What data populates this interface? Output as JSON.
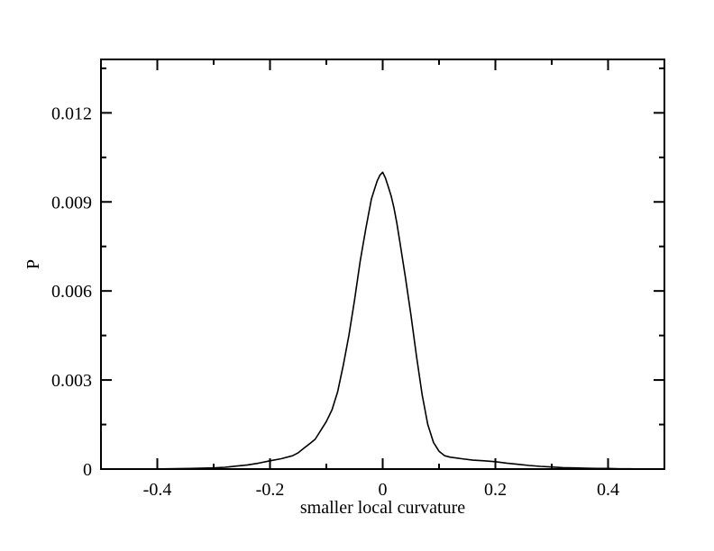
{
  "chart_data": {
    "type": "line",
    "title": "",
    "xlabel": "smaller local curvature",
    "ylabel": "P",
    "xlim": [
      -0.5,
      0.5
    ],
    "ylim": [
      0,
      0.0138
    ],
    "x_ticks": [
      -0.4,
      -0.2,
      0,
      0.2,
      0.4
    ],
    "x_tick_labels": [
      "-0.4",
      "-0.2",
      "0",
      "0.2",
      "0.4"
    ],
    "y_ticks": [
      0,
      0.003,
      0.006,
      0.009,
      0.012
    ],
    "y_tick_labels": [
      "0",
      "0.003",
      "0.006",
      "0.009",
      "0.012"
    ],
    "grid": false,
    "line_color": "#000000",
    "series": [
      {
        "x": [
          -0.46,
          -0.42,
          -0.38,
          -0.34,
          -0.3,
          -0.28,
          -0.26,
          -0.24,
          -0.22,
          -0.2,
          -0.18,
          -0.16,
          -0.15,
          -0.14,
          -0.13,
          -0.12,
          -0.11,
          -0.1,
          -0.09,
          -0.08,
          -0.07,
          -0.06,
          -0.05,
          -0.04,
          -0.03,
          -0.025,
          -0.02,
          -0.015,
          -0.01,
          -0.005,
          0,
          0.005,
          0.01,
          0.015,
          0.02,
          0.025,
          0.03,
          0.04,
          0.05,
          0.06,
          0.07,
          0.08,
          0.09,
          0.1,
          0.11,
          0.12,
          0.14,
          0.16,
          0.18,
          0.2,
          0.22,
          0.24,
          0.26,
          0.28,
          0.3,
          0.32,
          0.34,
          0.36,
          0.38,
          0.4,
          0.42,
          0.44,
          0.46
        ],
        "values": [
          0.0,
          0.0,
          1e-05,
          2e-05,
          4e-05,
          6e-05,
          0.0001,
          0.00014,
          0.0002,
          0.00028,
          0.00035,
          0.00045,
          0.00055,
          0.0007,
          0.00085,
          0.001,
          0.0013,
          0.0016,
          0.002,
          0.0026,
          0.0035,
          0.0045,
          0.0057,
          0.007,
          0.0081,
          0.0086,
          0.0091,
          0.0094,
          0.0097,
          0.0099,
          0.01,
          0.0098,
          0.0095,
          0.0092,
          0.0088,
          0.0083,
          0.0077,
          0.0065,
          0.0052,
          0.0038,
          0.0025,
          0.0015,
          0.0009,
          0.0006,
          0.00045,
          0.0004,
          0.00035,
          0.0003,
          0.00028,
          0.00025,
          0.0002,
          0.00016,
          0.00012,
          9e-05,
          7e-05,
          5e-05,
          4e-05,
          3e-05,
          2e-05,
          2e-05,
          1e-05,
          1e-05,
          0.0
        ]
      }
    ]
  }
}
